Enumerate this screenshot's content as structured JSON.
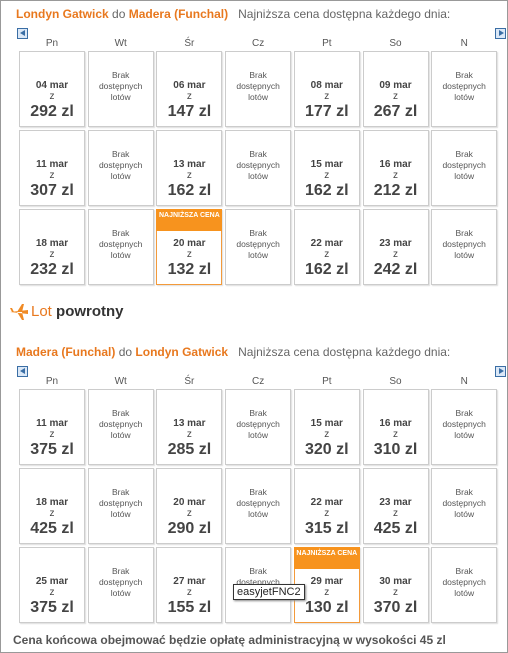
{
  "sections": [
    {
      "origin": "Londyn Gatwick",
      "connector": "do",
      "destination": "Madera (Funchal)",
      "note": "Najniższa cena dostępna każdego dnia:",
      "days": [
        "Pn",
        "Wt",
        "Śr",
        "Cz",
        "Pt",
        "So",
        "N"
      ],
      "rows": [
        [
          {
            "date": "04 mar",
            "from": "z",
            "price": "292 zl"
          },
          {
            "text": [
              "Brak",
              "dostępnych",
              "lotów"
            ]
          },
          {
            "date": "06 mar",
            "from": "z",
            "price": "147 zl"
          },
          {
            "text": [
              "Brak",
              "dostępnych",
              "lotów"
            ]
          },
          {
            "date": "08 mar",
            "from": "z",
            "price": "177 zl"
          },
          {
            "date": "09 mar",
            "from": "z",
            "price": "267 zl"
          },
          {
            "text": [
              "Brak",
              "dostępnych",
              "lotów"
            ]
          }
        ],
        [
          {
            "date": "11 mar",
            "from": "z",
            "price": "307 zl"
          },
          {
            "text": [
              "Brak",
              "dostępnych",
              "lotów"
            ]
          },
          {
            "date": "13 mar",
            "from": "z",
            "price": "162 zl"
          },
          {
            "text": [
              "Brak",
              "dostępnych",
              "lotów"
            ]
          },
          {
            "date": "15 mar",
            "from": "z",
            "price": "162 zl"
          },
          {
            "date": "16 mar",
            "from": "z",
            "price": "212 zl"
          },
          {
            "text": [
              "Brak",
              "dostępnych",
              "lotów"
            ]
          }
        ],
        [
          {
            "date": "18 mar",
            "from": "z",
            "price": "232 zl"
          },
          {
            "text": [
              "Brak",
              "dostępnych",
              "lotów"
            ]
          },
          {
            "badge": "NAJNIŻSZA CENA",
            "date": "20 mar",
            "from": "z",
            "price": "132 zl"
          },
          {
            "text": [
              "Brak",
              "dostępnych",
              "lotów"
            ]
          },
          {
            "date": "22 mar",
            "from": "z",
            "price": "162 zl"
          },
          {
            "date": "23 mar",
            "from": "z",
            "price": "242 zl"
          },
          {
            "text": [
              "Brak",
              "dostępnych",
              "lotów"
            ]
          }
        ]
      ]
    },
    {
      "origin": "Madera (Funchal)",
      "connector": "do",
      "destination": "Londyn Gatwick",
      "note": "Najniższa cena dostępna każdego dnia:",
      "days": [
        "Pn",
        "Wt",
        "Śr",
        "Cz",
        "Pt",
        "So",
        "N"
      ],
      "rows": [
        [
          {
            "date": "11 mar",
            "from": "z",
            "price": "375 zl"
          },
          {
            "text": [
              "Brak",
              "dostępnych",
              "lotów"
            ]
          },
          {
            "date": "13 mar",
            "from": "z",
            "price": "285 zl"
          },
          {
            "text": [
              "Brak",
              "dostępnych",
              "lotów"
            ]
          },
          {
            "date": "15 mar",
            "from": "z",
            "price": "320 zl"
          },
          {
            "date": "16 mar",
            "from": "z",
            "price": "310 zl"
          },
          {
            "text": [
              "Brak",
              "dostępnych",
              "lotów"
            ]
          }
        ],
        [
          {
            "date": "18 mar",
            "from": "z",
            "price": "425 zl"
          },
          {
            "text": [
              "Brak",
              "dostępnych",
              "lotów"
            ]
          },
          {
            "date": "20 mar",
            "from": "z",
            "price": "290 zl"
          },
          {
            "text": [
              "Brak",
              "dostępnych",
              "lotów"
            ]
          },
          {
            "date": "22 mar",
            "from": "z",
            "price": "315 zl"
          },
          {
            "date": "23 mar",
            "from": "z",
            "price": "425 zl"
          },
          {
            "text": [
              "Brak",
              "dostępnych",
              "lotów"
            ]
          }
        ],
        [
          {
            "date": "25 mar",
            "from": "z",
            "price": "375 zl"
          },
          {
            "text": [
              "Brak",
              "dostępnych",
              "lotów"
            ]
          },
          {
            "date": "27 mar",
            "from": "z",
            "price": "155 zl"
          },
          {
            "text": [
              "Brak",
              "dostępnych",
              "lotów"
            ]
          },
          {
            "badge": "NAJNIŻSZA CENA",
            "date": "29 mar",
            "from": "z",
            "price": "130 zl"
          },
          {
            "date": "30 mar",
            "from": "z",
            "price": "370 zl"
          },
          {
            "text": [
              "Brak",
              "dostępnych",
              "lotów"
            ]
          }
        ]
      ]
    }
  ],
  "return": {
    "lot": "Lot",
    "label": "powrotny"
  },
  "tooltip": "easyjetFNC2",
  "footer": "Cena końcowa obejmować będzie opłatę administracyjną w wysokości 45 zl"
}
